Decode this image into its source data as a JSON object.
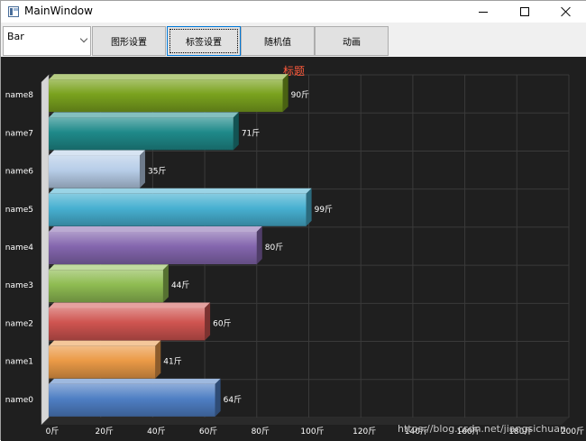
{
  "window": {
    "title": "MainWindow"
  },
  "toolbar": {
    "combo_value": "Bar",
    "buttons": [
      "图形设置",
      "标签设置",
      "随机值",
      "动画"
    ],
    "focused_index": 1
  },
  "colors": {
    "background": "#1f1f1f",
    "grid": "#3a3a3a",
    "title": "#ff5a3c",
    "label": "#ffffff"
  },
  "chart_data": {
    "type": "bar",
    "orientation": "horizontal",
    "title": "标题",
    "categories": [
      "name0",
      "name1",
      "name2",
      "name3",
      "name4",
      "name5",
      "name6",
      "name7",
      "name8"
    ],
    "values": [
      64,
      41,
      60,
      44,
      80,
      99,
      35,
      71,
      90
    ],
    "value_labels": [
      "64斤",
      "41斤",
      "60斤",
      "44斤",
      "80斤",
      "99斤",
      "35斤",
      "71斤",
      "90斤"
    ],
    "bar_colors": [
      "#4f7fc4",
      "#eb9a47",
      "#cf5450",
      "#8fbc52",
      "#8466ae",
      "#47b0d1",
      "#b7cde8",
      "#1f8a8a",
      "#7aa21e"
    ],
    "xlim": [
      0,
      200
    ],
    "xticks": [
      0,
      20,
      40,
      60,
      80,
      100,
      120,
      140,
      160,
      180,
      200
    ],
    "xtick_labels": [
      "0斤",
      "20斤",
      "40斤",
      "60斤",
      "80斤",
      "100斤",
      "120斤",
      "140斤",
      "160斤",
      "180斤",
      "200斤"
    ],
    "grid": true,
    "legend": "none"
  },
  "watermark": "https://blog.csdn.net/jiangsichuan"
}
